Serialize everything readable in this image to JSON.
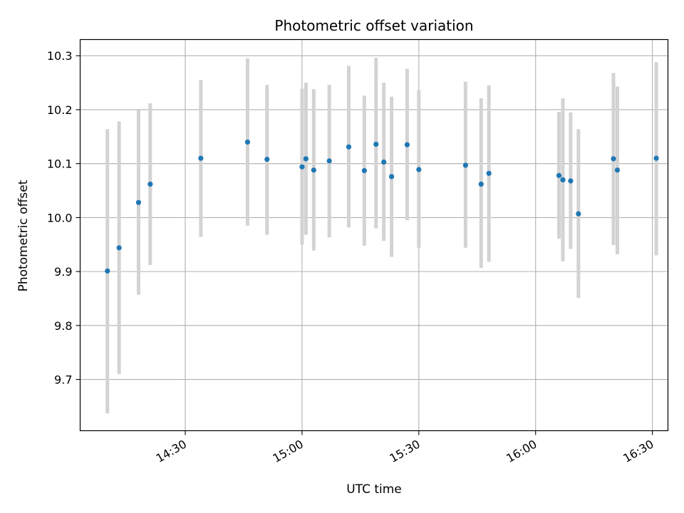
{
  "chart_data": {
    "type": "scatter",
    "title": "Photometric offset variation",
    "xlabel": "UTC time",
    "ylabel": "Photometric offset",
    "x_axis": {
      "kind": "time",
      "range": [
        "14:03",
        "16:34"
      ],
      "ticks": [
        "14:30",
        "15:00",
        "15:30",
        "16:00",
        "16:30"
      ]
    },
    "y_axis": {
      "range": [
        9.605,
        10.33
      ],
      "ticks": [
        "9.7",
        "9.8",
        "9.9",
        "10.0",
        "10.1",
        "10.2",
        "10.3"
      ]
    },
    "grid": true,
    "colors": {
      "marker": "#1f77b4",
      "errorbar": "#d3d3d3",
      "grid": "#b0b0b0"
    },
    "points": [
      {
        "time": "14:10",
        "value": 9.901,
        "lower": 9.637,
        "upper": 10.164
      },
      {
        "time": "14:13",
        "value": 9.944,
        "lower": 9.71,
        "upper": 10.178
      },
      {
        "time": "14:18",
        "value": 10.028,
        "lower": 9.857,
        "upper": 10.199
      },
      {
        "time": "14:21",
        "value": 10.062,
        "lower": 9.912,
        "upper": 10.212
      },
      {
        "time": "14:34",
        "value": 10.11,
        "lower": 9.964,
        "upper": 10.255
      },
      {
        "time": "14:46",
        "value": 10.14,
        "lower": 9.985,
        "upper": 10.295
      },
      {
        "time": "14:51",
        "value": 10.108,
        "lower": 9.968,
        "upper": 10.246
      },
      {
        "time": "15:00",
        "value": 10.094,
        "lower": 9.95,
        "upper": 10.239
      },
      {
        "time": "15:01",
        "value": 10.109,
        "lower": 9.968,
        "upper": 10.25
      },
      {
        "time": "15:03",
        "value": 10.088,
        "lower": 9.939,
        "upper": 10.238
      },
      {
        "time": "15:07",
        "value": 10.105,
        "lower": 9.963,
        "upper": 10.246
      },
      {
        "time": "15:12",
        "value": 10.131,
        "lower": 9.982,
        "upper": 10.281
      },
      {
        "time": "15:16",
        "value": 10.087,
        "lower": 9.948,
        "upper": 10.226
      },
      {
        "time": "15:19",
        "value": 10.136,
        "lower": 9.98,
        "upper": 10.296
      },
      {
        "time": "15:21",
        "value": 10.103,
        "lower": 9.957,
        "upper": 10.25
      },
      {
        "time": "15:23",
        "value": 10.076,
        "lower": 9.927,
        "upper": 10.224
      },
      {
        "time": "15:27",
        "value": 10.135,
        "lower": 9.995,
        "upper": 10.276
      },
      {
        "time": "15:30",
        "value": 10.089,
        "lower": 9.944,
        "upper": 10.236
      },
      {
        "time": "15:42",
        "value": 10.097,
        "lower": 9.944,
        "upper": 10.252
      },
      {
        "time": "15:46",
        "value": 10.062,
        "lower": 9.907,
        "upper": 10.221
      },
      {
        "time": "15:48",
        "value": 10.082,
        "lower": 9.918,
        "upper": 10.245
      },
      {
        "time": "16:06",
        "value": 10.078,
        "lower": 9.961,
        "upper": 10.196
      },
      {
        "time": "16:07",
        "value": 10.07,
        "lower": 9.935,
        "upper": 10.219
      },
      {
        "time": "16:07",
        "value": 10.07,
        "lower": 9.919,
        "upper": 10.221
      },
      {
        "time": "16:09",
        "value": 10.068,
        "lower": 9.942,
        "upper": 10.195
      },
      {
        "time": "16:11",
        "value": 10.007,
        "lower": 9.851,
        "upper": 10.164
      },
      {
        "time": "16:20",
        "value": 10.109,
        "lower": 9.949,
        "upper": 10.268
      },
      {
        "time": "16:21",
        "value": 10.088,
        "lower": 9.932,
        "upper": 10.243
      },
      {
        "time": "16:31",
        "value": 10.11,
        "lower": 9.93,
        "upper": 10.288
      }
    ]
  }
}
